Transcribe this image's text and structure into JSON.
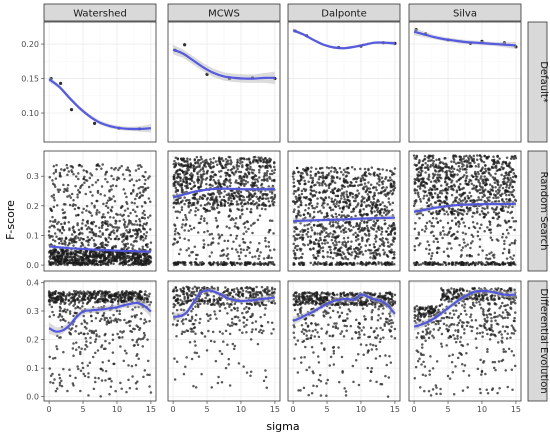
{
  "chart_data": {
    "type": "scatter",
    "xlabel": "sigma",
    "ylabel": "F-score",
    "columns": [
      "Watershed",
      "MCWS",
      "Dalponte",
      "Silva"
    ],
    "rows": [
      "Default*",
      "Random Search",
      "Differential Evolution"
    ],
    "xlim": [
      -0.75,
      15.75
    ],
    "xticks": [
      0,
      5,
      10,
      15
    ],
    "grid": true,
    "facet_scales": "free_y",
    "row_axes": [
      {
        "ylim": [
          0.058,
          0.232
        ],
        "yticks": [
          0.1,
          0.15,
          0.2
        ],
        "ytick_labels": [
          "0.10",
          "0.15",
          "0.20"
        ]
      },
      {
        "ylim": [
          -0.02,
          0.385
        ],
        "yticks": [
          0.0,
          0.1,
          0.2,
          0.3
        ],
        "ytick_labels": [
          "0.0",
          "0.1",
          "0.2",
          "0.3"
        ]
      },
      {
        "ylim": [
          -0.015,
          0.405
        ],
        "yticks": [
          0.0,
          0.1,
          0.2,
          0.3,
          0.4
        ],
        "ytick_labels": [
          "0.0",
          "0.1",
          "0.2",
          "0.3",
          "0.4"
        ]
      }
    ],
    "point_color": "#1a1a1a",
    "smooth_color": "#4a4fe0",
    "band_color": "#bdbdbd",
    "panels": [
      {
        "row": 0,
        "col": 0,
        "kind": "points",
        "points": [
          [
            0.3,
            0.15
          ],
          [
            1.7,
            0.143
          ],
          [
            3.3,
            0.105
          ],
          [
            6.7,
            0.085
          ],
          [
            10.3,
            0.078
          ],
          [
            13.3,
            0.077
          ]
        ],
        "smooth": [
          [
            0,
            0.149
          ],
          [
            1.5,
            0.138
          ],
          [
            3,
            0.122
          ],
          [
            4.5,
            0.107
          ],
          [
            6,
            0.095
          ],
          [
            7.5,
            0.086
          ],
          [
            9,
            0.081
          ],
          [
            10.5,
            0.078
          ],
          [
            12,
            0.077
          ],
          [
            13.5,
            0.077
          ],
          [
            15,
            0.078
          ]
        ],
        "band": [
          0.004,
          0.003,
          0.003,
          0.003,
          0.003,
          0.003,
          0.003,
          0.003,
          0.003,
          0.004,
          0.006
        ]
      },
      {
        "row": 0,
        "col": 1,
        "kind": "points",
        "points": [
          [
            0.3,
            0.191
          ],
          [
            1.7,
            0.199
          ],
          [
            5.0,
            0.156
          ],
          [
            8.3,
            0.15
          ],
          [
            11.7,
            0.151
          ],
          [
            15.0,
            0.15
          ]
        ],
        "smooth": [
          [
            0,
            0.192
          ],
          [
            1.5,
            0.186
          ],
          [
            3,
            0.176
          ],
          [
            4.5,
            0.166
          ],
          [
            6,
            0.158
          ],
          [
            7.5,
            0.153
          ],
          [
            9,
            0.151
          ],
          [
            10.5,
            0.15
          ],
          [
            12,
            0.15
          ],
          [
            13.5,
            0.151
          ],
          [
            15,
            0.151
          ]
        ],
        "band": [
          0.007,
          0.006,
          0.006,
          0.006,
          0.006,
          0.006,
          0.006,
          0.006,
          0.006,
          0.007,
          0.009
        ]
      },
      {
        "row": 0,
        "col": 2,
        "kind": "points",
        "points": [
          [
            0.3,
            0.219
          ],
          [
            2.0,
            0.212
          ],
          [
            6.7,
            0.195
          ],
          [
            10.0,
            0.197
          ],
          [
            13.3,
            0.202
          ],
          [
            15.0,
            0.201
          ]
        ],
        "smooth": [
          [
            0,
            0.22
          ],
          [
            1.5,
            0.214
          ],
          [
            3,
            0.206
          ],
          [
            4.5,
            0.199
          ],
          [
            6,
            0.195
          ],
          [
            7.5,
            0.194
          ],
          [
            9,
            0.196
          ],
          [
            10.5,
            0.199
          ],
          [
            12,
            0.202
          ],
          [
            13.5,
            0.202
          ],
          [
            15,
            0.201
          ]
        ],
        "band": [
          0.003,
          0.002,
          0.002,
          0.002,
          0.002,
          0.002,
          0.002,
          0.002,
          0.002,
          0.002,
          0.003
        ]
      },
      {
        "row": 0,
        "col": 3,
        "kind": "points",
        "points": [
          [
            0.3,
            0.221
          ],
          [
            1.7,
            0.215
          ],
          [
            5.0,
            0.206
          ],
          [
            8.3,
            0.201
          ],
          [
            10.0,
            0.204
          ],
          [
            13.3,
            0.202
          ],
          [
            15.0,
            0.196
          ]
        ],
        "smooth": [
          [
            0,
            0.218
          ],
          [
            1.5,
            0.214
          ],
          [
            3,
            0.21
          ],
          [
            4.5,
            0.207
          ],
          [
            6,
            0.205
          ],
          [
            7.5,
            0.203
          ],
          [
            9,
            0.202
          ],
          [
            10.5,
            0.201
          ],
          [
            12,
            0.2
          ],
          [
            13.5,
            0.199
          ],
          [
            15,
            0.198
          ]
        ],
        "band": [
          0.005,
          0.004,
          0.003,
          0.003,
          0.003,
          0.003,
          0.003,
          0.003,
          0.003,
          0.004,
          0.005
        ]
      },
      {
        "row": 1,
        "col": 0,
        "kind": "cloud",
        "n": 1300,
        "seed": 11,
        "model": "ws_rs",
        "smooth": [
          [
            0,
            0.063
          ],
          [
            1.5,
            0.06
          ],
          [
            3,
            0.057
          ],
          [
            4.5,
            0.055
          ],
          [
            6,
            0.053
          ],
          [
            7.5,
            0.051
          ],
          [
            9,
            0.05
          ],
          [
            10.5,
            0.048
          ],
          [
            12,
            0.047
          ],
          [
            13.5,
            0.046
          ],
          [
            15,
            0.045
          ]
        ],
        "band": [
          0.006,
          0.004,
          0.003,
          0.003,
          0.003,
          0.003,
          0.003,
          0.003,
          0.003,
          0.004,
          0.006
        ]
      },
      {
        "row": 1,
        "col": 1,
        "kind": "cloud",
        "n": 1100,
        "seed": 23,
        "model": "mcws_rs",
        "smooth": [
          [
            0,
            0.228
          ],
          [
            1.5,
            0.238
          ],
          [
            3,
            0.247
          ],
          [
            4.5,
            0.253
          ],
          [
            6,
            0.257
          ],
          [
            7.5,
            0.258
          ],
          [
            9,
            0.257
          ],
          [
            10.5,
            0.256
          ],
          [
            12,
            0.256
          ],
          [
            13.5,
            0.256
          ],
          [
            15,
            0.257
          ]
        ],
        "band": [
          0.01,
          0.006,
          0.005,
          0.004,
          0.004,
          0.004,
          0.004,
          0.004,
          0.004,
          0.006,
          0.01
        ]
      },
      {
        "row": 1,
        "col": 2,
        "kind": "cloud",
        "n": 1150,
        "seed": 37,
        "model": "dal_rs",
        "smooth": [
          [
            0,
            0.148
          ],
          [
            1.5,
            0.15
          ],
          [
            3,
            0.151
          ],
          [
            4.5,
            0.152
          ],
          [
            6,
            0.153
          ],
          [
            7.5,
            0.154
          ],
          [
            9,
            0.156
          ],
          [
            10.5,
            0.157
          ],
          [
            12,
            0.158
          ],
          [
            13.5,
            0.159
          ],
          [
            15,
            0.16
          ]
        ],
        "band": [
          0.01,
          0.007,
          0.006,
          0.005,
          0.005,
          0.005,
          0.005,
          0.005,
          0.006,
          0.007,
          0.01
        ]
      },
      {
        "row": 1,
        "col": 3,
        "kind": "cloud",
        "n": 1150,
        "seed": 53,
        "model": "sil_rs",
        "smooth": [
          [
            0,
            0.18
          ],
          [
            1.5,
            0.186
          ],
          [
            3,
            0.193
          ],
          [
            4.5,
            0.198
          ],
          [
            6,
            0.202
          ],
          [
            7.5,
            0.204
          ],
          [
            9,
            0.205
          ],
          [
            10.5,
            0.206
          ],
          [
            12,
            0.206
          ],
          [
            13.5,
            0.206
          ],
          [
            15,
            0.207
          ]
        ],
        "band": [
          0.01,
          0.007,
          0.006,
          0.005,
          0.005,
          0.005,
          0.005,
          0.005,
          0.006,
          0.007,
          0.01
        ]
      },
      {
        "row": 2,
        "col": 0,
        "kind": "cloud",
        "n": 700,
        "seed": 71,
        "model": "ws_de",
        "smooth": [
          [
            0,
            0.24
          ],
          [
            1,
            0.228
          ],
          [
            2,
            0.232
          ],
          [
            3,
            0.25
          ],
          [
            4,
            0.278
          ],
          [
            5,
            0.298
          ],
          [
            6,
            0.302
          ],
          [
            7,
            0.304
          ],
          [
            8,
            0.306
          ],
          [
            9,
            0.31
          ],
          [
            10,
            0.313
          ],
          [
            11,
            0.32
          ],
          [
            12,
            0.325
          ],
          [
            13,
            0.328
          ],
          [
            14,
            0.318
          ],
          [
            15,
            0.298
          ]
        ],
        "band": [
          0.02,
          0.015,
          0.012,
          0.01,
          0.01,
          0.01,
          0.01,
          0.01,
          0.01,
          0.01,
          0.01,
          0.01,
          0.012,
          0.014,
          0.016,
          0.02
        ]
      },
      {
        "row": 2,
        "col": 1,
        "kind": "cloud",
        "n": 500,
        "seed": 89,
        "model": "mcws_de",
        "smooth": [
          [
            0,
            0.28
          ],
          [
            1,
            0.282
          ],
          [
            2,
            0.295
          ],
          [
            3,
            0.33
          ],
          [
            4,
            0.363
          ],
          [
            5,
            0.372
          ],
          [
            6,
            0.368
          ],
          [
            7,
            0.358
          ],
          [
            8,
            0.345
          ],
          [
            9,
            0.338
          ],
          [
            10,
            0.335
          ],
          [
            11,
            0.336
          ],
          [
            12,
            0.338
          ],
          [
            13,
            0.342
          ],
          [
            14,
            0.344
          ],
          [
            15,
            0.348
          ]
        ],
        "band": [
          0.015,
          0.012,
          0.01,
          0.008,
          0.008,
          0.008,
          0.008,
          0.008,
          0.008,
          0.008,
          0.008,
          0.008,
          0.008,
          0.01,
          0.012,
          0.015
        ]
      },
      {
        "row": 2,
        "col": 2,
        "kind": "cloud",
        "n": 650,
        "seed": 97,
        "model": "dal_de",
        "smooth": [
          [
            0,
            0.265
          ],
          [
            1,
            0.275
          ],
          [
            2,
            0.287
          ],
          [
            3,
            0.298
          ],
          [
            4,
            0.312
          ],
          [
            5,
            0.325
          ],
          [
            6,
            0.335
          ],
          [
            7,
            0.34
          ],
          [
            8,
            0.342
          ],
          [
            9,
            0.34
          ],
          [
            10,
            0.358
          ],
          [
            11,
            0.35
          ],
          [
            12,
            0.34
          ],
          [
            13,
            0.335
          ],
          [
            14,
            0.318
          ],
          [
            15,
            0.29
          ]
        ],
        "band": [
          0.015,
          0.012,
          0.01,
          0.009,
          0.009,
          0.009,
          0.009,
          0.009,
          0.009,
          0.009,
          0.009,
          0.009,
          0.009,
          0.01,
          0.012,
          0.016
        ]
      },
      {
        "row": 2,
        "col": 3,
        "kind": "cloud",
        "n": 650,
        "seed": 113,
        "model": "sil_de",
        "smooth": [
          [
            0,
            0.245
          ],
          [
            1,
            0.252
          ],
          [
            2,
            0.262
          ],
          [
            3,
            0.275
          ],
          [
            4,
            0.292
          ],
          [
            5,
            0.31
          ],
          [
            6,
            0.328
          ],
          [
            7,
            0.345
          ],
          [
            8,
            0.358
          ],
          [
            9,
            0.368
          ],
          [
            10,
            0.37
          ],
          [
            11,
            0.368
          ],
          [
            12,
            0.364
          ],
          [
            13,
            0.358
          ],
          [
            14,
            0.356
          ],
          [
            15,
            0.358
          ]
        ],
        "band": [
          0.014,
          0.012,
          0.01,
          0.009,
          0.009,
          0.009,
          0.009,
          0.009,
          0.009,
          0.009,
          0.009,
          0.009,
          0.009,
          0.01,
          0.012,
          0.014
        ]
      }
    ]
  }
}
